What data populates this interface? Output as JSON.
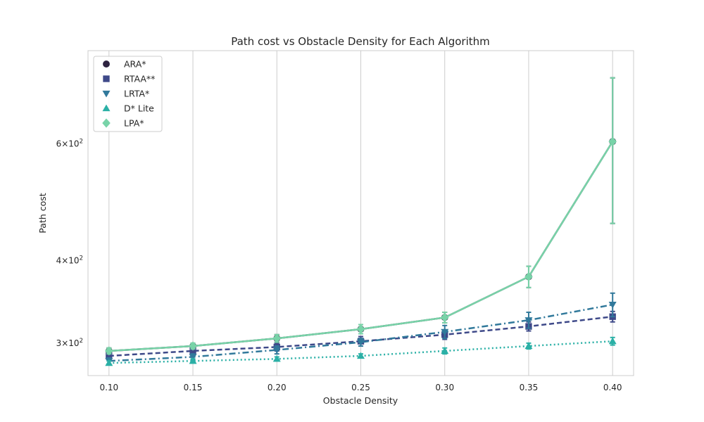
{
  "chart_data": {
    "type": "line",
    "title": "Path cost vs Obstacle Density for Each Algorithm",
    "xlabel": "Obstacle Density",
    "ylabel": "Path cost",
    "x": [
      0.1,
      0.15,
      0.2,
      0.25,
      0.3,
      0.35,
      0.4
    ],
    "x_tick_labels": [
      "0.10",
      "0.15",
      "0.20",
      "0.25",
      "0.30",
      "0.35",
      "0.40"
    ],
    "xlim": [
      0.0875,
      0.4125
    ],
    "yscale": "log",
    "ylim": [
      268,
      830
    ],
    "y_ticks": [
      {
        "value": 300,
        "mantissa": "3",
        "base": "10",
        "exp": "2"
      },
      {
        "value": 400,
        "mantissa": "4",
        "base": "10",
        "exp": "2"
      },
      {
        "value": 600,
        "mantissa": "6",
        "base": "10",
        "exp": "2"
      }
    ],
    "grid": "vertical",
    "legend_position": "top-left",
    "series": [
      {
        "name": "ARA*",
        "color": "#2d2240",
        "marker": "circle",
        "dash": "solid",
        "values": [
          292,
          297,
          305,
          315,
          328,
          378,
          605
        ],
        "err": [
          3,
          3,
          4,
          5,
          6,
          14,
          150
        ]
      },
      {
        "name": "RTAA**",
        "color": "#3e4989",
        "marker": "square",
        "dash": "dashed",
        "values": [
          287,
          292,
          296,
          302,
          309,
          318,
          329
        ],
        "err": [
          3,
          3,
          4,
          5,
          5,
          5,
          6
        ]
      },
      {
        "name": "LRTA*",
        "color": "#31799b",
        "marker": "triangle-down",
        "dash": "dashdot",
        "values": [
          282,
          286,
          293,
          301,
          312,
          325,
          343
        ],
        "err": [
          3,
          3,
          4,
          4,
          7,
          9,
          14
        ]
      },
      {
        "name": "D* Lite",
        "color": "#2bb0a6",
        "marker": "triangle-up",
        "dash": "dotted",
        "values": [
          280,
          282,
          284,
          287,
          292,
          297,
          302
        ],
        "err": [
          2,
          2,
          2,
          2,
          3,
          3,
          4
        ]
      },
      {
        "name": "LPA*",
        "color": "#78d3a8",
        "marker": "diamond",
        "dash": "solid",
        "values": [
          292,
          297,
          305,
          315,
          328,
          378,
          605
        ],
        "err": [
          3,
          3,
          4,
          5,
          6,
          14,
          150
        ]
      }
    ]
  }
}
